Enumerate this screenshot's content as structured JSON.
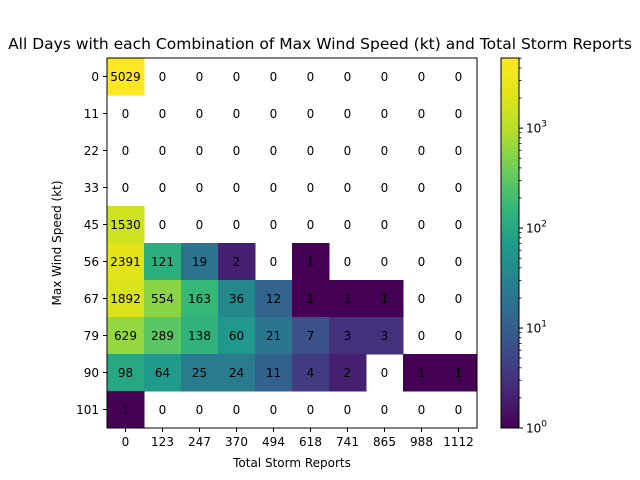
{
  "chart_data": {
    "type": "heatmap",
    "title": "All Days with each Combination of Max Wind Speed (kt) and Total Storm Reports",
    "xlabel": "Total Storm Reports",
    "ylabel": "Max Wind Speed (kt)",
    "x_categories": [
      "0",
      "123",
      "247",
      "370",
      "494",
      "618",
      "741",
      "865",
      "988",
      "1112"
    ],
    "y_categories": [
      "0",
      "11",
      "22",
      "33",
      "45",
      "56",
      "67",
      "79",
      "90",
      "101"
    ],
    "values": [
      [
        5029,
        0,
        0,
        0,
        0,
        0,
        0,
        0,
        0,
        0
      ],
      [
        0,
        0,
        0,
        0,
        0,
        0,
        0,
        0,
        0,
        0
      ],
      [
        0,
        0,
        0,
        0,
        0,
        0,
        0,
        0,
        0,
        0
      ],
      [
        0,
        0,
        0,
        0,
        0,
        0,
        0,
        0,
        0,
        0
      ],
      [
        1530,
        0,
        0,
        0,
        0,
        0,
        0,
        0,
        0,
        0
      ],
      [
        2391,
        121,
        19,
        2,
        0,
        1,
        0,
        0,
        0,
        0
      ],
      [
        1892,
        554,
        163,
        36,
        12,
        1,
        1,
        1,
        0,
        0
      ],
      [
        629,
        289,
        138,
        60,
        21,
        7,
        3,
        3,
        0,
        0
      ],
      [
        98,
        64,
        25,
        24,
        11,
        4,
        2,
        0,
        1,
        1
      ],
      [
        1,
        0,
        0,
        0,
        0,
        0,
        0,
        0,
        0,
        0
      ]
    ],
    "zero_cells": "white",
    "colorbar": {
      "scale": "log",
      "colormap": "viridis",
      "range": [
        1,
        5029
      ],
      "ticks": [
        {
          "value": 1,
          "base": "10",
          "exp": "0"
        },
        {
          "value": 10,
          "base": "10",
          "exp": "1"
        },
        {
          "value": 100,
          "base": "10",
          "exp": "2"
        },
        {
          "value": 1000,
          "base": "10",
          "exp": "3"
        }
      ]
    }
  }
}
